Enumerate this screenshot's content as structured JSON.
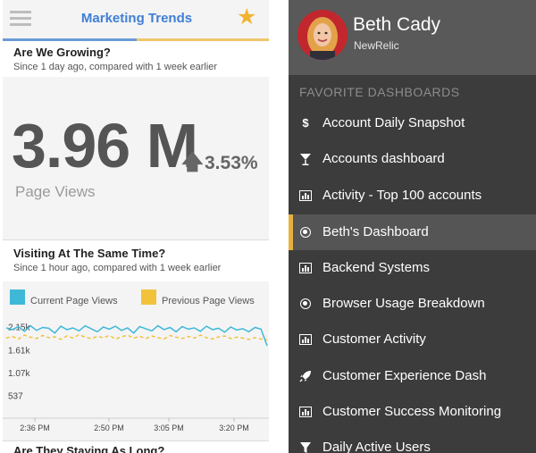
{
  "left_app": {
    "title": "Marketing Trends",
    "sections": [
      {
        "heading": "Are We Growing?",
        "subtitle": "Since 1 day ago, compared with 1 week earlier",
        "value": "3.96 M",
        "change": "3.53%",
        "metric": "Page Views"
      },
      {
        "heading": "Visiting At The Same Time?",
        "subtitle": "Since 1 hour ago, compared with 1 week earlier"
      },
      {
        "heading": "Are They Staying As Long?"
      }
    ]
  },
  "colors": {
    "current_series": "#3fb8d8",
    "previous_series": "#f2c23b",
    "accent_blue": "#3f7fd6",
    "star": "#f2b430",
    "active_marker": "#e8b13e"
  },
  "chart_data": {
    "type": "line",
    "legend_position": "top",
    "y_tick_labels": [
      "2.15k",
      "1.61k",
      "1.07k",
      "537"
    ],
    "y_ticks": [
      2150,
      1610,
      1070,
      537
    ],
    "x_tick_labels": [
      "2:36 PM",
      "2:50 PM",
      "3:05 PM",
      "3:20 PM"
    ],
    "ylim": [
      0,
      2350
    ],
    "series": [
      {
        "name": "Current Page Views",
        "values": [
          2120,
          2080,
          2150,
          2040,
          2170,
          2060,
          2130,
          2110,
          2000,
          2160,
          2080,
          2120,
          2050,
          2170,
          2100,
          2030,
          2140,
          2090,
          2160,
          2060,
          2120,
          2000,
          2150,
          2100,
          2050,
          2170,
          2080,
          2130,
          2030,
          2150,
          2090,
          2120,
          2040,
          2160,
          2080,
          2110,
          2020,
          2140,
          2070,
          2100,
          2030,
          2130,
          2090,
          1700
        ]
      },
      {
        "name": "Previous Page Views",
        "values": [
          1880,
          1920,
          1860,
          1950,
          1900,
          1870,
          1940,
          1890,
          1910,
          1850,
          1930,
          1880,
          1960,
          1900,
          1870,
          1920,
          1890,
          1940,
          1860,
          1910,
          1950,
          1880,
          1920,
          1870,
          1930,
          1890,
          1860,
          1940,
          1900,
          1870,
          1920,
          1880,
          1950,
          1890,
          1860,
          1910,
          1930,
          1870,
          1900,
          1880,
          1850,
          1890,
          1860,
          1840
        ]
      }
    ]
  },
  "right_app": {
    "user": {
      "name": "Beth Cady",
      "org": "NewRelic"
    },
    "favorites_heading": "FAVORITE DASHBOARDS",
    "dashboards": [
      {
        "label": "Account Daily Snapshot",
        "icon": "dollar-icon"
      },
      {
        "label": "Accounts dashboard",
        "icon": "martini-glass-icon"
      },
      {
        "label": "Activity - Top 100 accounts",
        "icon": "bar-chart-icon"
      },
      {
        "label": "Beth's Dashboard",
        "icon": "target-icon",
        "active": true
      },
      {
        "label": "Backend Systems",
        "icon": "bar-chart-icon"
      },
      {
        "label": "Browser Usage Breakdown",
        "icon": "target-icon"
      },
      {
        "label": "Customer Activity",
        "icon": "bar-chart-icon"
      },
      {
        "label": "Customer Experience Dash",
        "icon": "rocket-icon"
      },
      {
        "label": "Customer Success Monitoring",
        "icon": "bar-chart-icon"
      },
      {
        "label": "Daily Active Users",
        "icon": "filter-icon"
      }
    ]
  }
}
